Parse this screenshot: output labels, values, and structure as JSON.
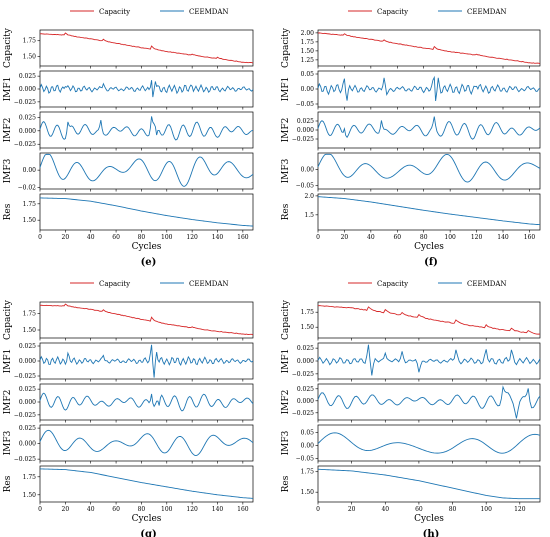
{
  "chart_data": [
    {
      "id": "e",
      "type": "line",
      "caption": "(e)",
      "xlabel": "Cycles",
      "xlim": [
        0,
        168
      ],
      "xticks": [
        0,
        20,
        40,
        60,
        80,
        100,
        120,
        140,
        160
      ],
      "legend": {
        "placement": "top",
        "entries": [
          {
            "name": "Capacity",
            "color": "#d62728"
          },
          {
            "name": "CEEMDAN",
            "color": "#1f77b4"
          }
        ]
      },
      "subplots": [
        {
          "ylabel": "Capacity",
          "ylim": [
            1.35,
            1.92
          ],
          "yticks": [
            1.5,
            1.75
          ],
          "ytick_labels": [
            "1.50",
            "1.75"
          ],
          "color": "#d62728",
          "anchors": [
            [
              0,
              1.86
            ],
            [
              20,
              1.84
            ],
            [
              40,
              1.78
            ],
            [
              60,
              1.71
            ],
            [
              80,
              1.64
            ],
            [
              100,
              1.58
            ],
            [
              120,
              1.52
            ],
            [
              140,
              1.47
            ],
            [
              160,
              1.41
            ],
            [
              168,
              1.4
            ]
          ],
          "noise": 0.008,
          "steps": [
            [
              20,
              0.03
            ],
            [
              50,
              0.025
            ],
            [
              88,
              0.05
            ],
            [
              120,
              0.02
            ],
            [
              140,
              0.02
            ]
          ]
        },
        {
          "ylabel": "IMF1",
          "ylim": [
            -0.035,
            0.035
          ],
          "yticks": [
            -0.025,
            0.0,
            0.025
          ],
          "ytick_labels": [
            "−0.025",
            "0.000",
            "0.025"
          ],
          "color": "#1f77b4",
          "osc": {
            "amp": 0.006,
            "period": 4.2
          },
          "spikes": [
            [
              20,
              0.012
            ],
            [
              50,
              0.012
            ],
            [
              88,
              0.03
            ],
            [
              89,
              -0.03
            ],
            [
              91,
              0.018
            ],
            [
              120,
              0.01
            ]
          ]
        },
        {
          "ylabel": "IMF2",
          "ylim": [
            -0.032,
            0.035
          ],
          "yticks": [
            -0.025,
            0.0,
            0.025
          ],
          "ytick_labels": [
            "−0.025",
            "0.000",
            "0.025"
          ],
          "color": "#1f77b4",
          "osc": {
            "amp": 0.012,
            "period": 11
          },
          "spikes": [
            [
              22,
              0.02
            ],
            [
              48,
              0.02
            ],
            [
              88,
              0.025
            ],
            [
              92,
              -0.02
            ]
          ]
        },
        {
          "ylabel": "IMF3",
          "ylim": [
            -0.022,
            0.02
          ],
          "yticks": [
            -0.02,
            0.0
          ],
          "ytick_labels": [
            "−0.02",
            "0.00"
          ],
          "color": "#1f77b4",
          "osc": {
            "amp": 0.014,
            "period": 24
          }
        },
        {
          "ylabel": "Res",
          "ylim": [
            1.35,
            1.9
          ],
          "yticks": [
            1.5,
            1.75
          ],
          "ytick_labels": [
            "1.50",
            "1.75"
          ],
          "color": "#1f77b4",
          "anchors": [
            [
              0,
              1.84
            ],
            [
              20,
              1.83
            ],
            [
              40,
              1.79
            ],
            [
              60,
              1.72
            ],
            [
              80,
              1.64
            ],
            [
              100,
              1.57
            ],
            [
              120,
              1.51
            ],
            [
              140,
              1.46
            ],
            [
              160,
              1.42
            ],
            [
              168,
              1.41
            ]
          ]
        }
      ]
    },
    {
      "id": "f",
      "type": "line",
      "caption": "(f)",
      "xlabel": "Cycles",
      "xlim": [
        0,
        168
      ],
      "xticks": [
        0,
        20,
        40,
        60,
        80,
        100,
        120,
        140,
        160
      ],
      "legend": {
        "placement": "top",
        "entries": [
          {
            "name": "Capacity",
            "color": "#d62728"
          },
          {
            "name": "CEEMDAN",
            "color": "#1f77b4"
          }
        ]
      },
      "subplots": [
        {
          "ylabel": "Capacity",
          "ylim": [
            1.08,
            2.08
          ],
          "yticks": [
            1.25,
            1.5,
            1.75,
            2.0
          ],
          "ytick_labels": [
            "1.25",
            "1.50",
            "1.75",
            "2.00"
          ],
          "color": "#d62728",
          "anchors": [
            [
              0,
              2.0
            ],
            [
              20,
              1.93
            ],
            [
              40,
              1.82
            ],
            [
              60,
              1.7
            ],
            [
              80,
              1.58
            ],
            [
              100,
              1.48
            ],
            [
              120,
              1.38
            ],
            [
              140,
              1.28
            ],
            [
              160,
              1.17
            ],
            [
              168,
              1.15
            ]
          ],
          "noise": 0.015,
          "steps": [
            [
              20,
              0.04
            ],
            [
              50,
              0.04
            ],
            [
              88,
              0.08
            ],
            [
              120,
              0.03
            ]
          ]
        },
        {
          "ylabel": "IMF1",
          "ylim": [
            -0.06,
            0.06
          ],
          "yticks": [
            -0.05,
            0.0,
            0.05
          ],
          "ytick_labels": [
            "−0.05",
            "0.00",
            "0.05"
          ],
          "color": "#1f77b4",
          "osc": {
            "amp": 0.012,
            "period": 4.5
          },
          "spikes": [
            [
              20,
              0.035
            ],
            [
              22,
              -0.03
            ],
            [
              50,
              0.03
            ],
            [
              52,
              -0.02
            ],
            [
              88,
              0.055
            ],
            [
              89,
              -0.05
            ],
            [
              91,
              0.03
            ],
            [
              120,
              0.02
            ]
          ]
        },
        {
          "ylabel": "IMF2",
          "ylim": [
            -0.05,
            0.05
          ],
          "yticks": [
            -0.025,
            0.0,
            0.025
          ],
          "ytick_labels": [
            "−0.025",
            "0.000",
            "0.025"
          ],
          "color": "#1f77b4",
          "osc": {
            "amp": 0.018,
            "period": 12
          },
          "spikes": [
            [
              20,
              0.025
            ],
            [
              48,
              0.03
            ],
            [
              88,
              0.03
            ]
          ]
        },
        {
          "ylabel": "IMF3",
          "ylim": [
            -0.06,
            0.05
          ],
          "yticks": [
            -0.05,
            0.0
          ],
          "ytick_labels": [
            "−0.05",
            "0.00"
          ],
          "color": "#1f77b4",
          "osc": {
            "amp": 0.035,
            "period": 30
          }
        },
        {
          "ylabel": "Res",
          "ylim": [
            1.1,
            2.05
          ],
          "yticks": [
            1.5,
            2.0
          ],
          "ytick_labels": [
            "1.5",
            "2.0"
          ],
          "color": "#1f77b4",
          "anchors": [
            [
              0,
              1.98
            ],
            [
              20,
              1.93
            ],
            [
              40,
              1.84
            ],
            [
              60,
              1.73
            ],
            [
              80,
              1.62
            ],
            [
              100,
              1.52
            ],
            [
              120,
              1.43
            ],
            [
              140,
              1.34
            ],
            [
              160,
              1.26
            ],
            [
              168,
              1.24
            ]
          ]
        }
      ]
    },
    {
      "id": "g",
      "type": "line",
      "caption": "(g)",
      "xlabel": "Cycles",
      "xlim": [
        0,
        168
      ],
      "xticks": [
        0,
        20,
        40,
        60,
        80,
        100,
        120,
        140,
        160
      ],
      "legend": {
        "placement": "top",
        "entries": [
          {
            "name": "Capacity",
            "color": "#d62728"
          },
          {
            "name": "CEEMDAN",
            "color": "#1f77b4"
          }
        ]
      },
      "subplots": [
        {
          "ylabel": "Capacity",
          "ylim": [
            1.38,
            1.92
          ],
          "yticks": [
            1.5,
            1.75
          ],
          "ytick_labels": [
            "1.50",
            "1.75"
          ],
          "color": "#d62728",
          "anchors": [
            [
              0,
              1.87
            ],
            [
              20,
              1.86
            ],
            [
              40,
              1.81
            ],
            [
              60,
              1.74
            ],
            [
              80,
              1.66
            ],
            [
              100,
              1.59
            ],
            [
              120,
              1.53
            ],
            [
              140,
              1.48
            ],
            [
              160,
              1.44
            ],
            [
              168,
              1.43
            ]
          ],
          "noise": 0.008,
          "steps": [
            [
              20,
              0.025
            ],
            [
              50,
              0.025
            ],
            [
              88,
              0.06
            ],
            [
              120,
              0.02
            ]
          ]
        },
        {
          "ylabel": "IMF1",
          "ylim": [
            -0.03,
            0.03
          ],
          "yticks": [
            -0.025,
            0.0,
            0.025
          ],
          "ytick_labels": [
            "−0.025",
            "0.000",
            "0.025"
          ],
          "color": "#1f77b4",
          "osc": {
            "amp": 0.005,
            "period": 4.3
          },
          "spikes": [
            [
              22,
              0.01
            ],
            [
              50,
              0.01
            ],
            [
              88,
              0.028
            ],
            [
              90,
              -0.025
            ],
            [
              92,
              0.012
            ]
          ]
        },
        {
          "ylabel": "IMF2",
          "ylim": [
            -0.035,
            0.035
          ],
          "yticks": [
            -0.025,
            0.0,
            0.025
          ],
          "ytick_labels": [
            "−0.025",
            "0.000",
            "0.025"
          ],
          "color": "#1f77b4",
          "osc": {
            "amp": 0.012,
            "period": 11.5
          },
          "spikes": [
            [
              88,
              0.025
            ],
            [
              94,
              -0.02
            ]
          ]
        },
        {
          "ylabel": "IMF3",
          "ylim": [
            -0.028,
            0.03
          ],
          "yticks": [
            -0.025,
            0.0,
            0.025
          ],
          "ytick_labels": [
            "−0.025",
            "0.000",
            "0.025"
          ],
          "color": "#1f77b4",
          "osc": {
            "amp": 0.015,
            "period": 26
          }
        },
        {
          "ylabel": "Res",
          "ylim": [
            1.4,
            1.9
          ],
          "yticks": [
            1.5,
            1.75
          ],
          "ytick_labels": [
            "1.50",
            "1.75"
          ],
          "color": "#1f77b4",
          "anchors": [
            [
              0,
              1.86
            ],
            [
              20,
              1.85
            ],
            [
              40,
              1.81
            ],
            [
              60,
              1.74
            ],
            [
              80,
              1.67
            ],
            [
              100,
              1.61
            ],
            [
              120,
              1.55
            ],
            [
              140,
              1.5
            ],
            [
              160,
              1.46
            ],
            [
              168,
              1.45
            ]
          ]
        }
      ]
    },
    {
      "id": "h",
      "type": "line",
      "caption": "(h)",
      "xlabel": "Cycles",
      "xlim": [
        0,
        132
      ],
      "xticks": [
        0,
        20,
        40,
        60,
        80,
        100,
        120
      ],
      "legend": {
        "placement": "top",
        "entries": [
          {
            "name": "Capacity",
            "color": "#d62728"
          },
          {
            "name": "CEEMDAN",
            "color": "#1f77b4"
          }
        ]
      },
      "subplots": [
        {
          "ylabel": "Capacity",
          "ylim": [
            1.32,
            1.92
          ],
          "yticks": [
            1.5,
            1.75
          ],
          "ytick_labels": [
            "1.50",
            "1.75"
          ],
          "color": "#d62728",
          "anchors": [
            [
              0,
              1.86
            ],
            [
              20,
              1.82
            ],
            [
              40,
              1.74
            ],
            [
              60,
              1.66
            ],
            [
              80,
              1.57
            ],
            [
              100,
              1.49
            ],
            [
              120,
              1.42
            ],
            [
              132,
              1.38
            ]
          ],
          "noise": 0.012,
          "steps": [
            [
              30,
              0.06
            ],
            [
              40,
              0.05
            ],
            [
              50,
              0.04
            ],
            [
              60,
              0.05
            ],
            [
              82,
              0.06
            ],
            [
              100,
              0.05
            ],
            [
              115,
              0.04
            ],
            [
              125,
              0.04
            ]
          ]
        },
        {
          "ylabel": "IMF1",
          "ylim": [
            -0.035,
            0.035
          ],
          "yticks": [
            -0.025,
            0.0,
            0.025
          ],
          "ytick_labels": [
            "−0.025",
            "0.000",
            "0.025"
          ],
          "color": "#1f77b4",
          "osc": {
            "amp": 0.005,
            "period": 4.1
          },
          "spikes": [
            [
              30,
              0.03
            ],
            [
              32,
              -0.025
            ],
            [
              40,
              0.02
            ],
            [
              50,
              0.018
            ],
            [
              60,
              -0.02
            ],
            [
              82,
              0.022
            ],
            [
              100,
              0.018
            ],
            [
              115,
              0.02
            ]
          ]
        },
        {
          "ylabel": "IMF2",
          "ylim": [
            -0.04,
            0.035
          ],
          "yticks": [
            -0.025,
            0.0,
            0.025
          ],
          "ytick_labels": [
            "−0.025",
            "0.000",
            "0.025"
          ],
          "color": "#1f77b4",
          "osc": {
            "amp": 0.012,
            "period": 10
          },
          "spikes": [
            [
              110,
              0.025
            ],
            [
              118,
              -0.03
            ],
            [
              125,
              0.03
            ]
          ]
        },
        {
          "ylabel": "IMF3",
          "ylim": [
            -0.06,
            0.08
          ],
          "yticks": [
            -0.05,
            0.0,
            0.05
          ],
          "ytick_labels": [
            "−0.05",
            "0.00",
            "0.05"
          ],
          "color": "#1f77b4",
          "osc": {
            "amp": 0.035,
            "period": 40
          }
        },
        {
          "ylabel": "Res",
          "ylim": [
            1.38,
            1.82
          ],
          "yticks": [
            1.5,
            1.75
          ],
          "ytick_labels": [
            "1.50",
            "1.75"
          ],
          "color": "#1f77b4",
          "anchors": [
            [
              0,
              1.78
            ],
            [
              20,
              1.76
            ],
            [
              40,
              1.71
            ],
            [
              60,
              1.64
            ],
            [
              80,
              1.55
            ],
            [
              100,
              1.46
            ],
            [
              110,
              1.43
            ],
            [
              120,
              1.42
            ],
            [
              132,
              1.42
            ]
          ]
        }
      ]
    }
  ]
}
